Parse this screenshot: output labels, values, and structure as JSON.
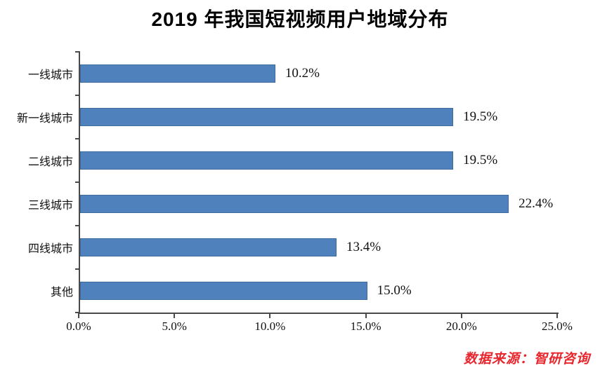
{
  "chart_data": {
    "type": "bar",
    "orientation": "horizontal",
    "title": "2019 年我国短视频用户地域分布",
    "categories": [
      "一线城市",
      "新一线城市",
      "二线城市",
      "三线城市",
      "四线城市",
      "其他"
    ],
    "values": [
      10.2,
      19.5,
      19.5,
      22.4,
      13.4,
      15.0
    ],
    "value_labels": [
      "10.2%",
      "19.5%",
      "19.5%",
      "22.4%",
      "13.4%",
      "15.0%"
    ],
    "x_ticks": [
      "0.0%",
      "5.0%",
      "10.0%",
      "15.0%",
      "20.0%",
      "25.0%"
    ],
    "x_tick_values": [
      0,
      5,
      10,
      15,
      20,
      25
    ],
    "xlim": [
      0,
      25
    ],
    "xlabel": "",
    "ylabel": "",
    "grid": false,
    "legend": "none",
    "bar_color": "#4f81bd",
    "bar_border_color": "#3e6c9e",
    "axis_color": "#4a4a4a"
  },
  "source_note": {
    "text": "数据来源：智研咨询",
    "color": "#e8262d"
  }
}
